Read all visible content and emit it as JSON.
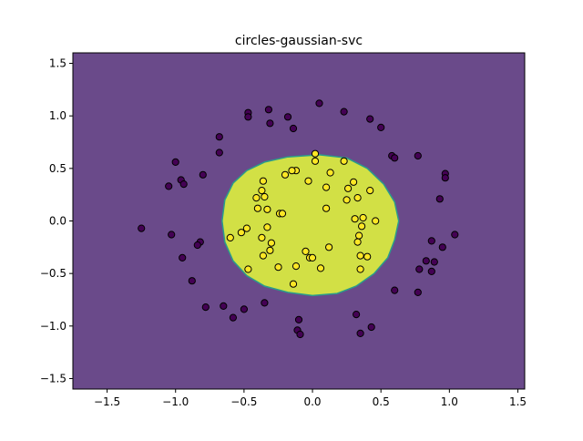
{
  "chart_data": {
    "type": "scatter",
    "title": "circles-gaussian-svc",
    "xlabel": "",
    "ylabel": "",
    "xlim": [
      -1.75,
      1.55
    ],
    "ylim": [
      -1.6,
      1.6
    ],
    "xticks": [
      -1.5,
      -1.0,
      -0.5,
      0.0,
      0.5,
      1.0,
      1.5
    ],
    "xtick_labels": [
      "−1.5",
      "−1.0",
      "−0.5",
      "0.0",
      "0.5",
      "1.0",
      "1.5"
    ],
    "yticks": [
      -1.5,
      -1.0,
      -0.5,
      0.0,
      0.5,
      1.0,
      1.5
    ],
    "ytick_labels": [
      "−1.5",
      "−1.0",
      "−0.5",
      "0.0",
      "0.5",
      "1.0",
      "1.5"
    ],
    "grid": false,
    "background_region_color": "#6a4a8a",
    "decision_region_color": "#d2e045",
    "decision_boundary_color": "#2a9d8a",
    "decision_region": [
      [
        0.05,
        0.63
      ],
      [
        0.25,
        0.6
      ],
      [
        0.4,
        0.5
      ],
      [
        0.52,
        0.35
      ],
      [
        0.6,
        0.18
      ],
      [
        0.63,
        0.0
      ],
      [
        0.6,
        -0.18
      ],
      [
        0.55,
        -0.35
      ],
      [
        0.45,
        -0.5
      ],
      [
        0.32,
        -0.62
      ],
      [
        0.18,
        -0.69
      ],
      [
        0.0,
        -0.71
      ],
      [
        -0.18,
        -0.68
      ],
      [
        -0.35,
        -0.62
      ],
      [
        -0.48,
        -0.52
      ],
      [
        -0.58,
        -0.38
      ],
      [
        -0.64,
        -0.2
      ],
      [
        -0.66,
        0.0
      ],
      [
        -0.64,
        0.2
      ],
      [
        -0.58,
        0.36
      ],
      [
        -0.48,
        0.48
      ],
      [
        -0.35,
        0.56
      ],
      [
        -0.18,
        0.61
      ]
    ],
    "series": [
      {
        "class": 0,
        "color": "#440154",
        "points": [
          [
            0.05,
            1.12
          ],
          [
            -0.32,
            1.06
          ],
          [
            -0.47,
            1.03
          ],
          [
            -0.47,
            0.99
          ],
          [
            -0.18,
            0.99
          ],
          [
            -0.31,
            0.93
          ],
          [
            0.23,
            1.04
          ],
          [
            -0.14,
            0.88
          ],
          [
            0.42,
            0.97
          ],
          [
            0.5,
            0.89
          ],
          [
            -0.68,
            0.8
          ],
          [
            -0.68,
            0.65
          ],
          [
            0.58,
            0.62
          ],
          [
            0.6,
            0.6
          ],
          [
            0.77,
            0.62
          ],
          [
            -1.0,
            0.56
          ],
          [
            -0.8,
            0.44
          ],
          [
            -0.96,
            0.39
          ],
          [
            -0.94,
            0.35
          ],
          [
            -1.05,
            0.33
          ],
          [
            0.97,
            0.45
          ],
          [
            0.97,
            0.41
          ],
          [
            0.93,
            0.21
          ],
          [
            -1.25,
            -0.07
          ],
          [
            -1.03,
            -0.13
          ],
          [
            -0.82,
            -0.2
          ],
          [
            -0.84,
            -0.23
          ],
          [
            -0.95,
            -0.35
          ],
          [
            -0.88,
            -0.57
          ],
          [
            1.04,
            -0.13
          ],
          [
            0.87,
            -0.19
          ],
          [
            0.95,
            -0.25
          ],
          [
            0.83,
            -0.38
          ],
          [
            0.89,
            -0.39
          ],
          [
            0.78,
            -0.46
          ],
          [
            0.87,
            -0.48
          ],
          [
            0.6,
            -0.66
          ],
          [
            0.77,
            -0.68
          ],
          [
            -0.78,
            -0.82
          ],
          [
            -0.65,
            -0.81
          ],
          [
            -0.5,
            -0.84
          ],
          [
            -0.58,
            -0.92
          ],
          [
            -0.35,
            -0.78
          ],
          [
            -0.1,
            -0.94
          ],
          [
            -0.11,
            -1.04
          ],
          [
            -0.09,
            -1.08
          ],
          [
            0.32,
            -0.89
          ],
          [
            0.35,
            -1.07
          ],
          [
            0.43,
            -1.01
          ]
        ]
      },
      {
        "class": 1,
        "color": "#fde725",
        "points": [
          [
            0.02,
            0.64
          ],
          [
            0.02,
            0.57
          ],
          [
            0.23,
            0.57
          ],
          [
            -0.12,
            0.48
          ],
          [
            -0.15,
            0.48
          ],
          [
            -0.2,
            0.44
          ],
          [
            0.13,
            0.46
          ],
          [
            0.3,
            0.37
          ],
          [
            -0.36,
            0.38
          ],
          [
            -0.03,
            0.38
          ],
          [
            0.1,
            0.32
          ],
          [
            0.26,
            0.31
          ],
          [
            -0.37,
            0.29
          ],
          [
            -0.35,
            0.23
          ],
          [
            -0.41,
            0.22
          ],
          [
            0.42,
            0.29
          ],
          [
            0.33,
            0.22
          ],
          [
            0.25,
            0.2
          ],
          [
            -0.4,
            0.12
          ],
          [
            -0.33,
            0.11
          ],
          [
            0.1,
            0.12
          ],
          [
            -0.24,
            0.07
          ],
          [
            -0.22,
            0.07
          ],
          [
            0.31,
            0.02
          ],
          [
            0.37,
            0.03
          ],
          [
            0.46,
            0.0
          ],
          [
            -0.33,
            -0.06
          ],
          [
            -0.48,
            -0.07
          ],
          [
            -0.52,
            -0.11
          ],
          [
            0.36,
            -0.05
          ],
          [
            -0.6,
            -0.16
          ],
          [
            0.34,
            -0.14
          ],
          [
            -0.37,
            -0.16
          ],
          [
            -0.3,
            -0.21
          ],
          [
            0.33,
            -0.2
          ],
          [
            0.12,
            -0.25
          ],
          [
            -0.05,
            -0.29
          ],
          [
            -0.31,
            -0.28
          ],
          [
            -0.36,
            -0.33
          ],
          [
            -0.02,
            -0.35
          ],
          [
            0.0,
            -0.35
          ],
          [
            0.35,
            -0.33
          ],
          [
            0.4,
            -0.34
          ],
          [
            -0.25,
            -0.44
          ],
          [
            -0.12,
            -0.43
          ],
          [
            0.06,
            -0.45
          ],
          [
            0.35,
            -0.46
          ],
          [
            -0.47,
            -0.46
          ],
          [
            -0.14,
            -0.6
          ]
        ]
      }
    ]
  }
}
